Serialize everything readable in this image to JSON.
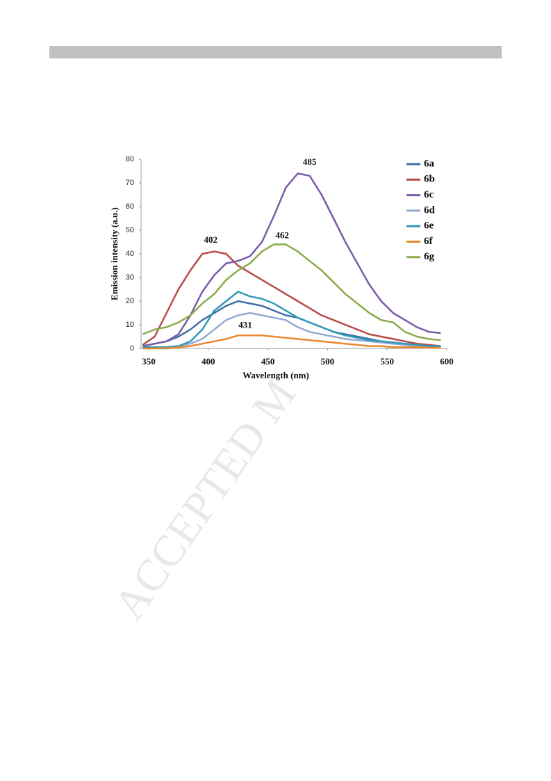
{
  "watermark": "ACCEPTED M",
  "chart_data": {
    "type": "line",
    "xlabel": "Wavelength (nm)",
    "ylabel": "Emission intensity (a.u.)",
    "x": [
      345,
      355,
      365,
      375,
      385,
      395,
      405,
      415,
      425,
      435,
      445,
      455,
      465,
      475,
      485,
      495,
      505,
      515,
      525,
      535,
      545,
      555,
      565,
      575,
      585,
      595
    ],
    "xlim": [
      343.6,
      600
    ],
    "xticks": [
      350,
      400,
      450,
      500,
      550,
      600
    ],
    "ylim": [
      0,
      80
    ],
    "yticks": [
      0,
      10,
      20,
      30,
      40,
      50,
      60,
      70,
      80
    ],
    "grid": false,
    "legend": "upper right",
    "series": [
      {
        "name": "6a",
        "color": "#3f6ea8",
        "values": [
          1,
          2,
          3,
          5,
          8,
          12,
          15,
          18,
          20,
          19,
          18,
          16,
          14,
          13,
          11,
          9,
          7,
          6,
          5,
          4,
          3,
          2.5,
          2,
          1.5,
          1,
          1
        ]
      },
      {
        "name": "6b",
        "color": "#b94a48",
        "values": [
          1.5,
          5,
          15,
          25,
          33,
          40,
          41,
          40,
          35,
          32,
          29,
          26,
          23,
          20,
          17,
          14,
          12,
          10,
          8,
          6,
          5,
          4,
          3,
          2,
          1.5,
          1
        ]
      },
      {
        "name": "6c",
        "color": "#7b5aa6",
        "values": [
          1,
          2,
          3,
          6,
          14,
          24,
          31,
          36,
          37,
          39,
          45,
          56,
          68,
          74,
          73,
          65,
          55,
          45,
          36,
          27,
          20,
          15,
          12,
          9,
          7,
          6.5
        ]
      },
      {
        "name": "6d",
        "color": "#93a9d2",
        "values": [
          0.5,
          0.5,
          0.5,
          1,
          2,
          4,
          8,
          12,
          14,
          15,
          14,
          13,
          12,
          9,
          7,
          6,
          5,
          4,
          3.5,
          3,
          2.5,
          2,
          1.5,
          1,
          1,
          0.5
        ]
      },
      {
        "name": "6e",
        "color": "#3399b5",
        "values": [
          0.5,
          0.5,
          0.5,
          1,
          3,
          8,
          16,
          20,
          24,
          22,
          21,
          19,
          16,
          13,
          11,
          9,
          7,
          5.5,
          4.5,
          3.5,
          3,
          2.5,
          2,
          1.5,
          1,
          1
        ]
      },
      {
        "name": "6f",
        "color": "#e8882f",
        "values": [
          0,
          0,
          0,
          0.5,
          1,
          2,
          3,
          4,
          5.5,
          5.5,
          5.5,
          5,
          4.5,
          4,
          3.5,
          3,
          2.5,
          2,
          1.5,
          1,
          1,
          0.5,
          0.5,
          0.5,
          0.3,
          0.2
        ]
      },
      {
        "name": "6g",
        "color": "#8aaa4b",
        "values": [
          6,
          8,
          9,
          11,
          14,
          19,
          23,
          29,
          33,
          36,
          41,
          44,
          44,
          41,
          37,
          33,
          28,
          23,
          19,
          15,
          12,
          11,
          7,
          5,
          4,
          3.5
        ]
      }
    ],
    "annotations": [
      {
        "text": "402",
        "x": 402,
        "y": 42
      },
      {
        "text": "485",
        "x": 485,
        "y": 75
      },
      {
        "text": "462",
        "x": 462,
        "y": 44
      },
      {
        "text": "431",
        "x": 431,
        "y": 6
      }
    ]
  }
}
